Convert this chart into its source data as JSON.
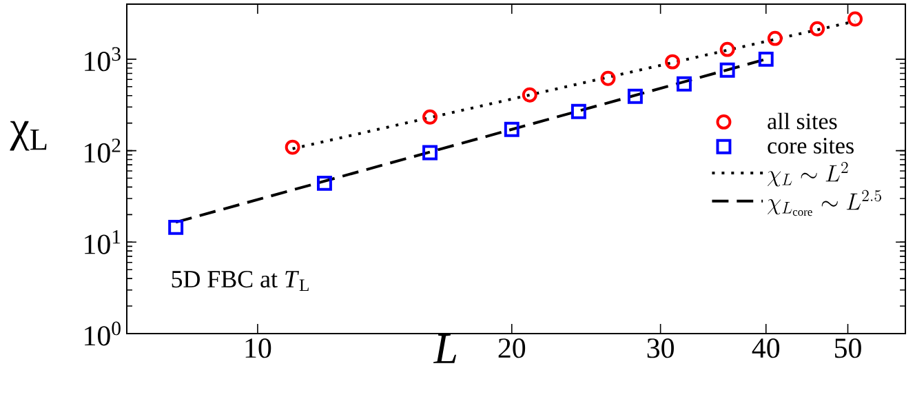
{
  "chart_data": {
    "type": "scatter",
    "log": "xy",
    "xlabel": "L",
    "ylabel": "χ$_{L}$",
    "xlim": [
      7,
      58.5
    ],
    "ylim": [
      1,
      4000
    ],
    "xticks": [
      10,
      20,
      30,
      40,
      50
    ],
    "yticks": [
      {
        "value": 1,
        "label": "10$^{0}$"
      },
      {
        "value": 10,
        "label": "10$^{1}$"
      },
      {
        "value": 100,
        "label": "10$^{2}$"
      },
      {
        "value": 1000,
        "label": "10$^{3}$"
      }
    ],
    "legend": "right",
    "annotations": [
      "5D FBC at *T*$_{L}$"
    ],
    "series": [
      {
        "name": "all sites",
        "type": "scatter",
        "marker": "circle",
        "color": "#ff0000",
        "x": [
          11,
          16,
          21,
          26,
          31,
          36,
          41,
          46,
          51
        ],
        "values": [
          109,
          233,
          407,
          617,
          937,
          1280,
          1690,
          2150,
          2750
        ]
      },
      {
        "name": "core sites",
        "type": "scatter",
        "marker": "square",
        "color": "#0000ff",
        "x": [
          8,
          12,
          16,
          20,
          24,
          28,
          32,
          36,
          40
        ],
        "values": [
          14.5,
          44,
          95,
          171,
          268,
          393,
          537,
          760,
          1000
        ]
      },
      {
        "name": "\\chi_{L}\\sim L^{2}",
        "type": "line",
        "line_style": "dotted",
        "marker": "none",
        "color": "#000000",
        "x": [
          11,
          51
        ],
        "values": [
          105,
          2600
        ]
      },
      {
        "name": "\\chi_{L_{\\mathrm{core}}}\\sim L^{2.5}",
        "type": "line",
        "line_style": "dashed",
        "marker": "none",
        "color": "#000000",
        "x": [
          8,
          40
        ],
        "values": [
          16.5,
          1000
        ]
      }
    ]
  }
}
